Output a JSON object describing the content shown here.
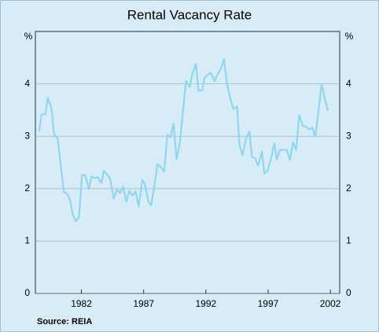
{
  "chart_data": {
    "type": "line",
    "title": "Rental Vacancy Rate",
    "source": "Source: REIA",
    "ylabel": "%",
    "y2label": "%",
    "color": "#8ed6f2",
    "grid": true,
    "x": [
      1978.6,
      1978.8,
      1979.1,
      1979.3,
      1979.6,
      1979.8,
      1980.1,
      1980.35,
      1980.6,
      1980.9,
      1981.1,
      1981.3,
      1981.55,
      1981.8,
      1982.05,
      1982.3,
      1982.6,
      1982.8,
      1983.1,
      1983.3,
      1983.6,
      1983.8,
      1984.1,
      1984.3,
      1984.6,
      1984.85,
      1985.1,
      1985.35,
      1985.6,
      1985.85,
      1986.1,
      1986.35,
      1986.6,
      1986.9,
      1987.1,
      1987.4,
      1987.6,
      1987.9,
      1988.1,
      1988.4,
      1988.65,
      1988.9,
      1989.15,
      1989.4,
      1989.65,
      1989.9,
      1990.2,
      1990.4,
      1990.7,
      1990.9,
      1991.2,
      1991.4,
      1991.7,
      1991.9,
      1992.2,
      1992.4,
      1992.7,
      1992.9,
      1993.2,
      1993.45,
      1993.7,
      1993.95,
      1994.2,
      1994.5,
      1994.7,
      1994.95,
      1995.2,
      1995.5,
      1995.7,
      1995.95,
      1996.2,
      1996.5,
      1996.7,
      1996.95,
      1997.25,
      1997.5,
      1997.7,
      1997.95,
      1998.25,
      1998.5,
      1998.75,
      1999.0,
      1999.25,
      1999.5,
      1999.8,
      2000.0,
      2000.3,
      2000.55,
      2000.8,
      2001.05,
      2001.3,
      2001.55,
      2001.8
    ],
    "values": [
      3.09,
      3.42,
      3.42,
      3.73,
      3.52,
      3.04,
      2.95,
      2.41,
      1.93,
      1.89,
      1.77,
      1.51,
      1.38,
      1.45,
      2.26,
      2.26,
      1.99,
      2.23,
      2.2,
      2.22,
      2.11,
      2.34,
      2.26,
      2.19,
      1.81,
      1.98,
      1.92,
      2.04,
      1.75,
      1.96,
      1.87,
      1.95,
      1.66,
      2.17,
      2.08,
      1.75,
      1.68,
      2.11,
      2.47,
      2.41,
      2.32,
      3.03,
      2.98,
      3.24,
      2.56,
      2.86,
      3.57,
      4.06,
      3.94,
      4.18,
      4.38,
      3.87,
      3.88,
      4.12,
      4.18,
      4.21,
      4.05,
      4.17,
      4.29,
      4.47,
      4.0,
      3.73,
      3.52,
      3.57,
      2.83,
      2.64,
      2.94,
      3.09,
      2.61,
      2.58,
      2.44,
      2.71,
      2.29,
      2.34,
      2.59,
      2.86,
      2.56,
      2.74,
      2.74,
      2.74,
      2.55,
      2.89,
      2.74,
      3.4,
      3.19,
      3.19,
      3.13,
      3.16,
      3.0,
      3.49,
      4.0,
      3.73,
      3.49
    ],
    "xlim": [
      1978.3,
      2002.75
    ],
    "xticks": [
      1982,
      1987,
      1992,
      1997,
      2002
    ],
    "ylim": [
      0,
      5
    ],
    "yticks": [
      0,
      1,
      2,
      3,
      4
    ],
    "y2lim": [
      0,
      5
    ],
    "y2ticks": [
      0,
      1,
      2,
      3,
      4
    ]
  }
}
